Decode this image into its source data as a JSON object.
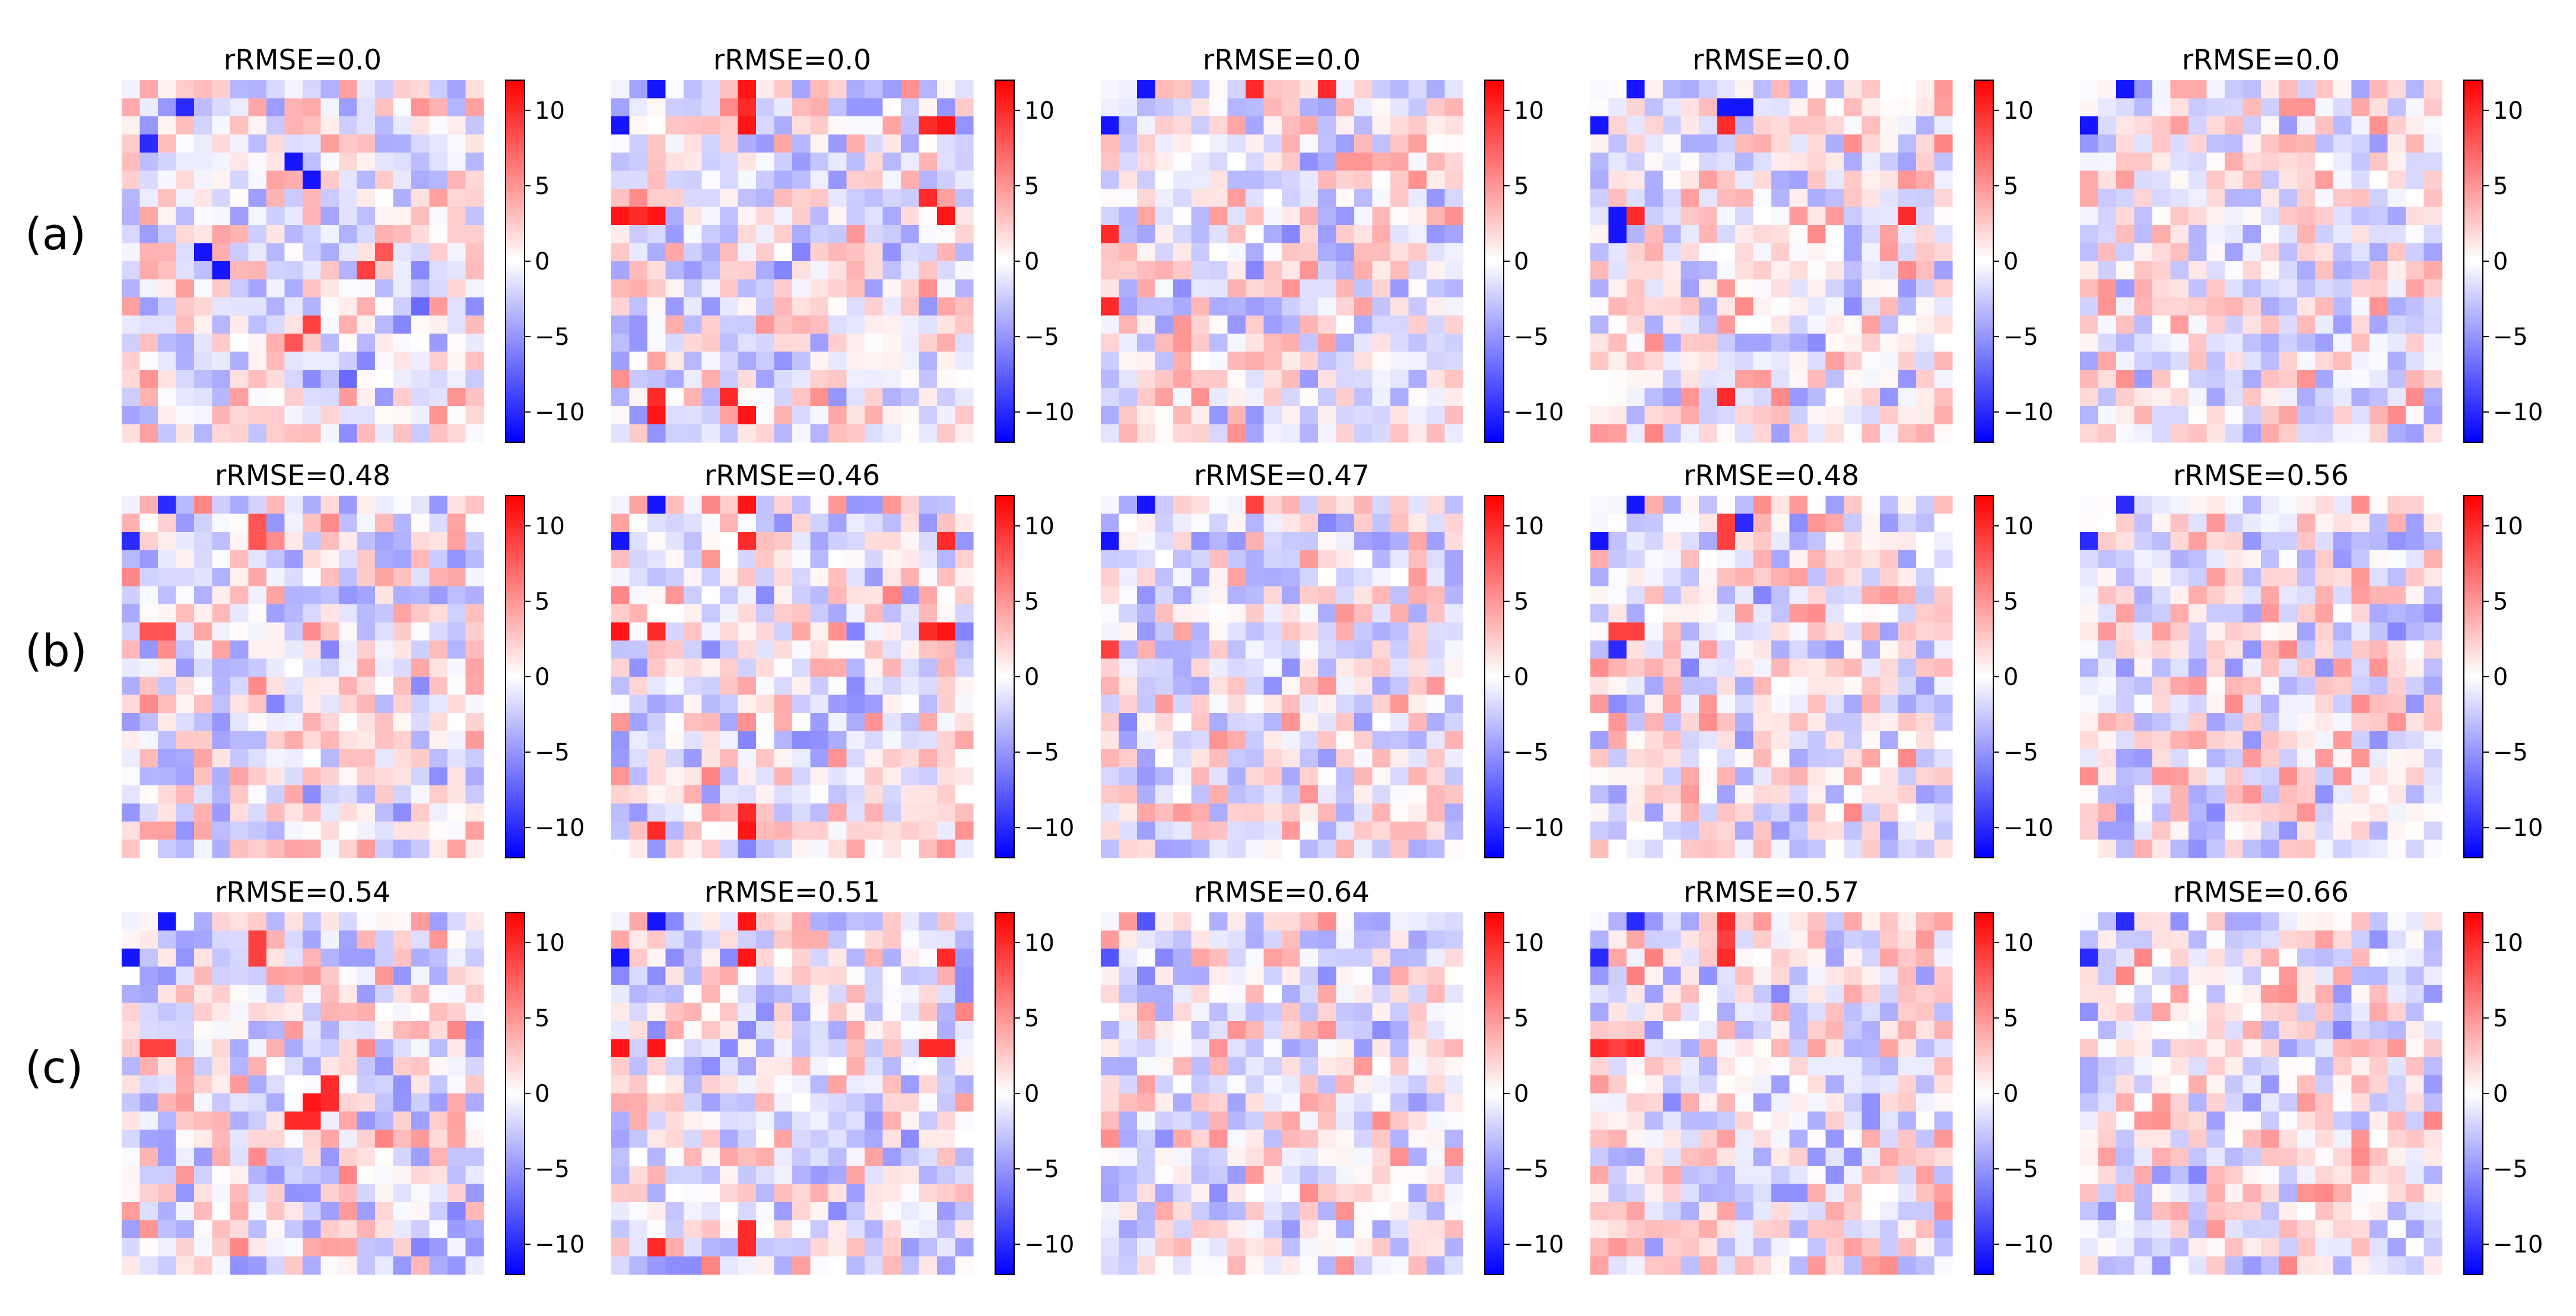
{
  "figure": {
    "row_labels": [
      "(a)",
      "(b)",
      "(c)"
    ],
    "colormap": {
      "name": "bwr",
      "low": "#0000ff",
      "mid": "#ffffff",
      "high": "#ff0000"
    }
  },
  "chart_data": [
    {
      "type": "heatmap",
      "row": 0,
      "col": 0,
      "title": "rRMSE=0.0",
      "matrix_size": [
        20,
        20
      ],
      "vmin": -12,
      "vmax": 12,
      "colorbar_ticks": [
        10,
        5,
        0,
        -5,
        -10
      ],
      "colorbar_tick_labels": [
        "10",
        "5",
        "0",
        "−5",
        "−10"
      ],
      "seed": 101,
      "hotspots": [
        [
          4,
          9,
          -11
        ],
        [
          5,
          10,
          -11
        ],
        [
          1,
          3,
          -10
        ],
        [
          14,
          9,
          8
        ],
        [
          13,
          10,
          9
        ],
        [
          16,
          12,
          -7
        ]
      ]
    },
    {
      "type": "heatmap",
      "row": 0,
      "col": 1,
      "title": "rRMSE=0.0",
      "matrix_size": [
        20,
        20
      ],
      "vmin": -12,
      "vmax": 12,
      "colorbar_ticks": [
        10,
        5,
        0,
        -5,
        -10
      ],
      "colorbar_tick_labels": [
        "10",
        "5",
        "0",
        "−5",
        "−10"
      ],
      "seed": 202,
      "hotspots": [
        [
          0,
          2,
          -11
        ],
        [
          1,
          7,
          10
        ],
        [
          2,
          7,
          10
        ],
        [
          7,
          0,
          11
        ],
        [
          7,
          2,
          11
        ],
        [
          18,
          2,
          11
        ],
        [
          18,
          7,
          11
        ],
        [
          6,
          17,
          10
        ],
        [
          2,
          17,
          10
        ]
      ]
    },
    {
      "type": "heatmap",
      "row": 0,
      "col": 2,
      "title": "rRMSE=0.0",
      "matrix_size": [
        20,
        20
      ],
      "vmin": -12,
      "vmax": 12,
      "colorbar_ticks": [
        10,
        5,
        0,
        -5,
        -10
      ],
      "colorbar_tick_labels": [
        "10",
        "5",
        "0",
        "−5",
        "−10"
      ],
      "seed": 303,
      "hotspots": [
        [
          0,
          2,
          -11
        ],
        [
          2,
          0,
          -11
        ],
        [
          8,
          0,
          10
        ],
        [
          12,
          0,
          10
        ]
      ]
    },
    {
      "type": "heatmap",
      "row": 0,
      "col": 3,
      "title": "rRMSE=0.0",
      "matrix_size": [
        20,
        20
      ],
      "vmin": -12,
      "vmax": 12,
      "colorbar_ticks": [
        10,
        5,
        0,
        -5,
        -10
      ],
      "colorbar_tick_labels": [
        "10",
        "5",
        "0",
        "−5",
        "−10"
      ],
      "seed": 404,
      "hotspots": [
        [
          0,
          2,
          -11
        ],
        [
          1,
          7,
          -11
        ],
        [
          2,
          7,
          10
        ],
        [
          8,
          1,
          -11
        ],
        [
          7,
          2,
          10
        ],
        [
          7,
          17,
          10
        ],
        [
          17,
          7,
          10
        ]
      ]
    },
    {
      "type": "heatmap",
      "row": 0,
      "col": 4,
      "title": "rRMSE=0.0",
      "matrix_size": [
        20,
        20
      ],
      "vmin": -12,
      "vmax": 12,
      "colorbar_ticks": [
        10,
        5,
        0,
        -5,
        -10
      ],
      "colorbar_tick_labels": [
        "10",
        "5",
        "0",
        "−5",
        "−10"
      ],
      "seed": 505,
      "hotspots": [
        [
          0,
          2,
          -11
        ],
        [
          2,
          0,
          -11
        ]
      ]
    },
    {
      "type": "heatmap",
      "row": 1,
      "col": 0,
      "title": "rRMSE=0.48",
      "matrix_size": [
        20,
        20
      ],
      "vmin": -12,
      "vmax": 12,
      "colorbar_ticks": [
        10,
        5,
        0,
        -5,
        -10
      ],
      "colorbar_tick_labels": [
        "10",
        "5",
        "0",
        "−5",
        "−10"
      ],
      "seed": 111,
      "hotspots": [
        [
          0,
          2,
          -11
        ],
        [
          2,
          0,
          -10
        ],
        [
          7,
          1,
          8
        ],
        [
          7,
          2,
          8
        ]
      ]
    },
    {
      "type": "heatmap",
      "row": 1,
      "col": 1,
      "title": "rRMSE=0.46",
      "matrix_size": [
        20,
        20
      ],
      "vmin": -12,
      "vmax": 12,
      "colorbar_ticks": [
        10,
        5,
        0,
        -5,
        -10
      ],
      "colorbar_tick_labels": [
        "10",
        "5",
        "0",
        "−5",
        "−10"
      ],
      "seed": 212,
      "hotspots": [
        [
          0,
          2,
          -11
        ],
        [
          2,
          0,
          -11
        ],
        [
          7,
          0,
          11
        ],
        [
          7,
          2,
          11
        ],
        [
          18,
          2,
          10
        ],
        [
          18,
          7,
          11
        ],
        [
          2,
          7,
          10
        ],
        [
          7,
          17,
          10
        ]
      ]
    },
    {
      "type": "heatmap",
      "row": 1,
      "col": 2,
      "title": "rRMSE=0.47",
      "matrix_size": [
        20,
        20
      ],
      "vmin": -12,
      "vmax": 12,
      "colorbar_ticks": [
        10,
        5,
        0,
        -5,
        -10
      ],
      "colorbar_tick_labels": [
        "10",
        "5",
        "0",
        "−5",
        "−10"
      ],
      "seed": 313,
      "hotspots": [
        [
          0,
          2,
          -11
        ],
        [
          2,
          0,
          -11
        ],
        [
          8,
          0,
          9
        ]
      ]
    },
    {
      "type": "heatmap",
      "row": 1,
      "col": 3,
      "title": "rRMSE=0.48",
      "matrix_size": [
        20,
        20
      ],
      "vmin": -12,
      "vmax": 12,
      "colorbar_ticks": [
        10,
        5,
        0,
        -5,
        -10
      ],
      "colorbar_tick_labels": [
        "10",
        "5",
        "0",
        "−5",
        "−10"
      ],
      "seed": 414,
      "hotspots": [
        [
          0,
          2,
          -11
        ],
        [
          1,
          7,
          -9
        ],
        [
          2,
          7,
          9
        ],
        [
          7,
          1,
          9
        ],
        [
          8,
          1,
          -10
        ]
      ]
    },
    {
      "type": "heatmap",
      "row": 1,
      "col": 4,
      "title": "rRMSE=0.56",
      "matrix_size": [
        20,
        20
      ],
      "vmin": -12,
      "vmax": 12,
      "colorbar_ticks": [
        10,
        5,
        0,
        -5,
        -10
      ],
      "colorbar_tick_labels": [
        "10",
        "5",
        "0",
        "−5",
        "−10"
      ],
      "seed": 515,
      "hotspots": [
        [
          0,
          2,
          -10
        ],
        [
          2,
          0,
          -10
        ]
      ]
    },
    {
      "type": "heatmap",
      "row": 2,
      "col": 0,
      "title": "rRMSE=0.54",
      "matrix_size": [
        20,
        20
      ],
      "vmin": -12,
      "vmax": 12,
      "colorbar_ticks": [
        10,
        5,
        0,
        -5,
        -10
      ],
      "colorbar_tick_labels": [
        "10",
        "5",
        "0",
        "−5",
        "−10"
      ],
      "seed": 121,
      "hotspots": [
        [
          0,
          2,
          -11
        ],
        [
          2,
          0,
          -11
        ],
        [
          7,
          1,
          9
        ],
        [
          7,
          2,
          9
        ],
        [
          9,
          11,
          11
        ],
        [
          10,
          10,
          11
        ],
        [
          11,
          9,
          10
        ],
        [
          11,
          10,
          10
        ]
      ]
    },
    {
      "type": "heatmap",
      "row": 2,
      "col": 1,
      "title": "rRMSE=0.51",
      "matrix_size": [
        20,
        20
      ],
      "vmin": -12,
      "vmax": 12,
      "colorbar_ticks": [
        10,
        5,
        0,
        -5,
        -10
      ],
      "colorbar_tick_labels": [
        "10",
        "5",
        "0",
        "−5",
        "−10"
      ],
      "seed": 222,
      "hotspots": [
        [
          0,
          2,
          -11
        ],
        [
          2,
          0,
          -11
        ],
        [
          7,
          0,
          11
        ],
        [
          7,
          2,
          11
        ],
        [
          18,
          2,
          10
        ],
        [
          18,
          7,
          10
        ],
        [
          7,
          17,
          10
        ]
      ]
    },
    {
      "type": "heatmap",
      "row": 2,
      "col": 2,
      "title": "rRMSE=0.64",
      "matrix_size": [
        20,
        20
      ],
      "vmin": -12,
      "vmax": 12,
      "colorbar_ticks": [
        10,
        5,
        0,
        -5,
        -10
      ],
      "colorbar_tick_labels": [
        "10",
        "5",
        "0",
        "−5",
        "−10"
      ],
      "seed": 323,
      "hotspots": [
        [
          0,
          2,
          -8
        ],
        [
          2,
          0,
          -8
        ]
      ]
    },
    {
      "type": "heatmap",
      "row": 2,
      "col": 3,
      "title": "rRMSE=0.57",
      "matrix_size": [
        20,
        20
      ],
      "vmin": -12,
      "vmax": 12,
      "colorbar_ticks": [
        10,
        5,
        0,
        -5,
        -10
      ],
      "colorbar_tick_labels": [
        "10",
        "5",
        "0",
        "−5",
        "−10"
      ],
      "seed": 424,
      "hotspots": [
        [
          0,
          2,
          -10
        ],
        [
          7,
          0,
          10
        ],
        [
          7,
          2,
          10
        ],
        [
          1,
          7,
          9
        ],
        [
          2,
          7,
          10
        ]
      ]
    },
    {
      "type": "heatmap",
      "row": 2,
      "col": 4,
      "title": "rRMSE=0.66",
      "matrix_size": [
        20,
        20
      ],
      "vmin": -12,
      "vmax": 12,
      "colorbar_ticks": [
        10,
        5,
        0,
        -5,
        -10
      ],
      "colorbar_tick_labels": [
        "10",
        "5",
        "0",
        "−5",
        "−10"
      ],
      "seed": 525,
      "hotspots": [
        [
          0,
          2,
          -9
        ],
        [
          2,
          0,
          -10
        ]
      ]
    }
  ]
}
